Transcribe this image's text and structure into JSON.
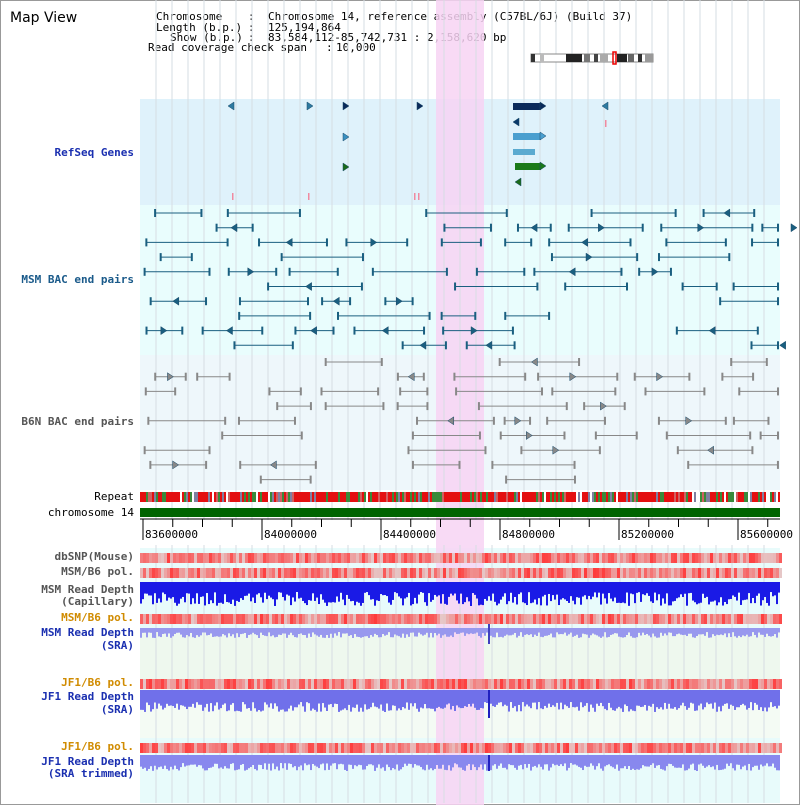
{
  "title": "Map View",
  "info": {
    "chromosome_label": "Chromosome",
    "chromosome_value": "Chromosome 14, reference assembly (C57BL/6J) (Build 37)",
    "length_label": "Length (b.p.)",
    "length_value": "125,194,864",
    "show_label": "Show (b.p.)",
    "show_value": "83,584,112-85,742,731 : 2,158,620 bp",
    "coverage_label": "Read coverage check span",
    "coverage_value": "10,000"
  },
  "tracks": {
    "refseq": "RefSeq Genes",
    "msm_bac": "MSM BAC end pairs",
    "b6n_bac": "B6N BAC end pairs",
    "repeat": "Repeat",
    "chromosome": "chromosome 14",
    "dbsnp": "dbSNP(Mouse)",
    "msm_pol1": "MSM/B6 pol.",
    "msm_depth_cap_1": "MSM Read Depth",
    "msm_depth_cap_2": "(Capillary)",
    "msm_pol2": "MSM/B6 pol.",
    "msm_depth_sra_1": "MSM Read Depth",
    "msm_depth_sra_2": "(SRA)",
    "jf1_pol1": "JF1/B6 pol.",
    "jf1_depth_sra_1": "JF1 Read Depth",
    "jf1_depth_sra_2": "(SRA)",
    "jf1_pol2": "JF1/B6 pol.",
    "jf1_depth_trim_1": "JF1 Read Depth",
    "jf1_depth_trim_2": "(SRA trimmed)"
  },
  "axis_ticks": [
    "83600000",
    "84000000",
    "84400000",
    "84800000",
    "85200000",
    "85600000"
  ],
  "colors": {
    "refseq_bg": "#dff2fb",
    "bac_bg": "#e9fdfd",
    "highlight": "#f7d3f3",
    "chromosome_bar": "#006400",
    "depth_blue": "#1a1ae6",
    "depth_light": "#8c8cf0"
  }
}
